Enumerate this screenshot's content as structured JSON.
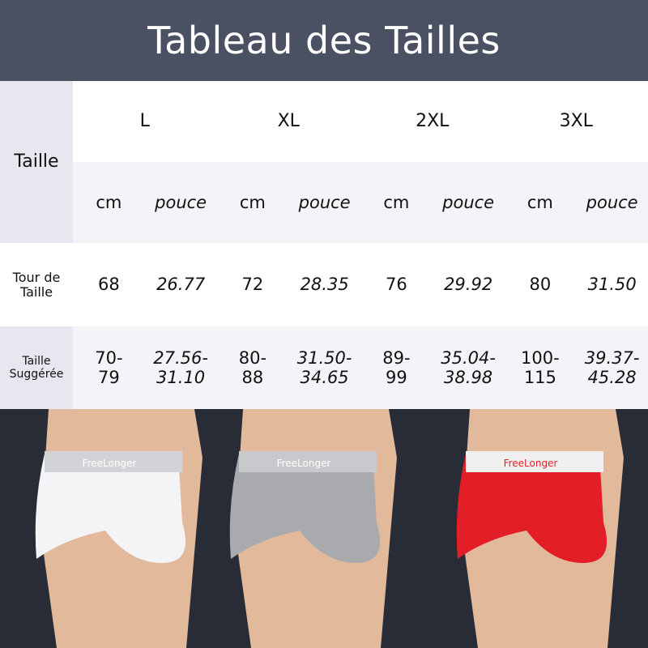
{
  "title": "Tableau des Tailles",
  "row_header_size": "Taille",
  "sizes": [
    "L",
    "XL",
    "2XL",
    "3XL"
  ],
  "units": {
    "cm": "cm",
    "inch": "pouce"
  },
  "rows": [
    {
      "label": "Tour de Taille",
      "values": [
        "68",
        "26.77",
        "72",
        "28.35",
        "76",
        "29.92",
        "80",
        "31.50"
      ]
    },
    {
      "label": "Taille Suggérée",
      "values": [
        "70-79",
        "27.56-31.10",
        "80-88",
        "31.50-34.65",
        "89-99",
        "35.04-38.98",
        "100-115",
        "39.37-45.28"
      ]
    }
  ],
  "products": [
    {
      "color": "#f4f4f6",
      "waistband": "#d2d3d6",
      "brand": "FreeLonger"
    },
    {
      "color": "#a9aaad",
      "waistband": "#c8c9cc",
      "brand": "FreeLonger"
    },
    {
      "color": "#e41e26",
      "waistband": "#f0f0f0",
      "brand": "FreeLonger"
    }
  ],
  "colors": {
    "header": "#4a5163",
    "label_col": "#e6e7ef",
    "alt_row": "#f3f4f8",
    "photo_bg": "#272c37"
  }
}
